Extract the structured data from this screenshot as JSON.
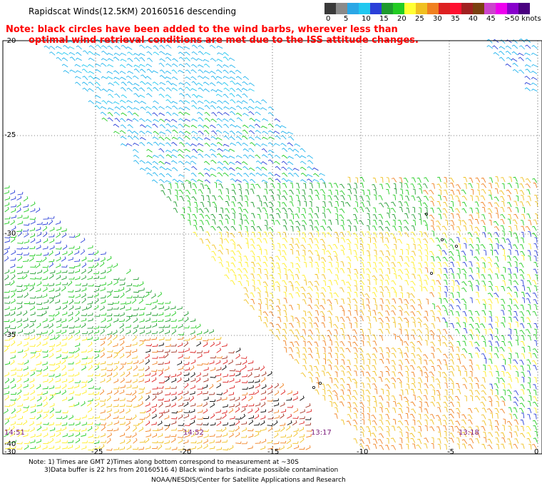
{
  "title": "Rapidscat Winds(12.5KM) 20160516 descending",
  "note": {
    "line1": "Note: black circles have been added to the wind barbs, wherever less than",
    "line2": "optimal wind retrieval conditions are met due to the ISS attitude changes."
  },
  "legend": {
    "labels": [
      "0",
      "5",
      "10",
      "15",
      "20",
      "25",
      "30",
      "35",
      "40",
      "45",
      ">50 knots"
    ],
    "colors": [
      "#3a3a3a",
      "#8a8a8a",
      "#2aa7e6",
      "#20c8f0",
      "#2a3fd8",
      "#1e9a2e",
      "#22cc22",
      "#ffff33",
      "#f0c020",
      "#f08020",
      "#dd2020",
      "#ff1030",
      "#a02020",
      "#7a4010",
      "#cc44cc",
      "#ee00ee",
      "#8800cc",
      "#4a0080"
    ]
  },
  "axes": {
    "lat_labels": [
      "-20",
      "-25",
      "-30",
      "-35",
      "-40"
    ],
    "lon_labels": [
      "-30",
      "-25",
      "-20",
      "-15",
      "-10",
      "-5",
      "0"
    ]
  },
  "swath_times": [
    "14:51",
    "14:52",
    "13:17",
    "13:18"
  ],
  "footer": {
    "line1": "Note: 1) Times are GMT 2)Times along bottom correspond to measurement at ~30S",
    "line2": "3)Data buffer is 22 hrs from 20160516 4) Black wind barbs indicate possible contamination",
    "credit": "NOAA/NESDIS/Center for Satellite Applications and Research"
  }
}
